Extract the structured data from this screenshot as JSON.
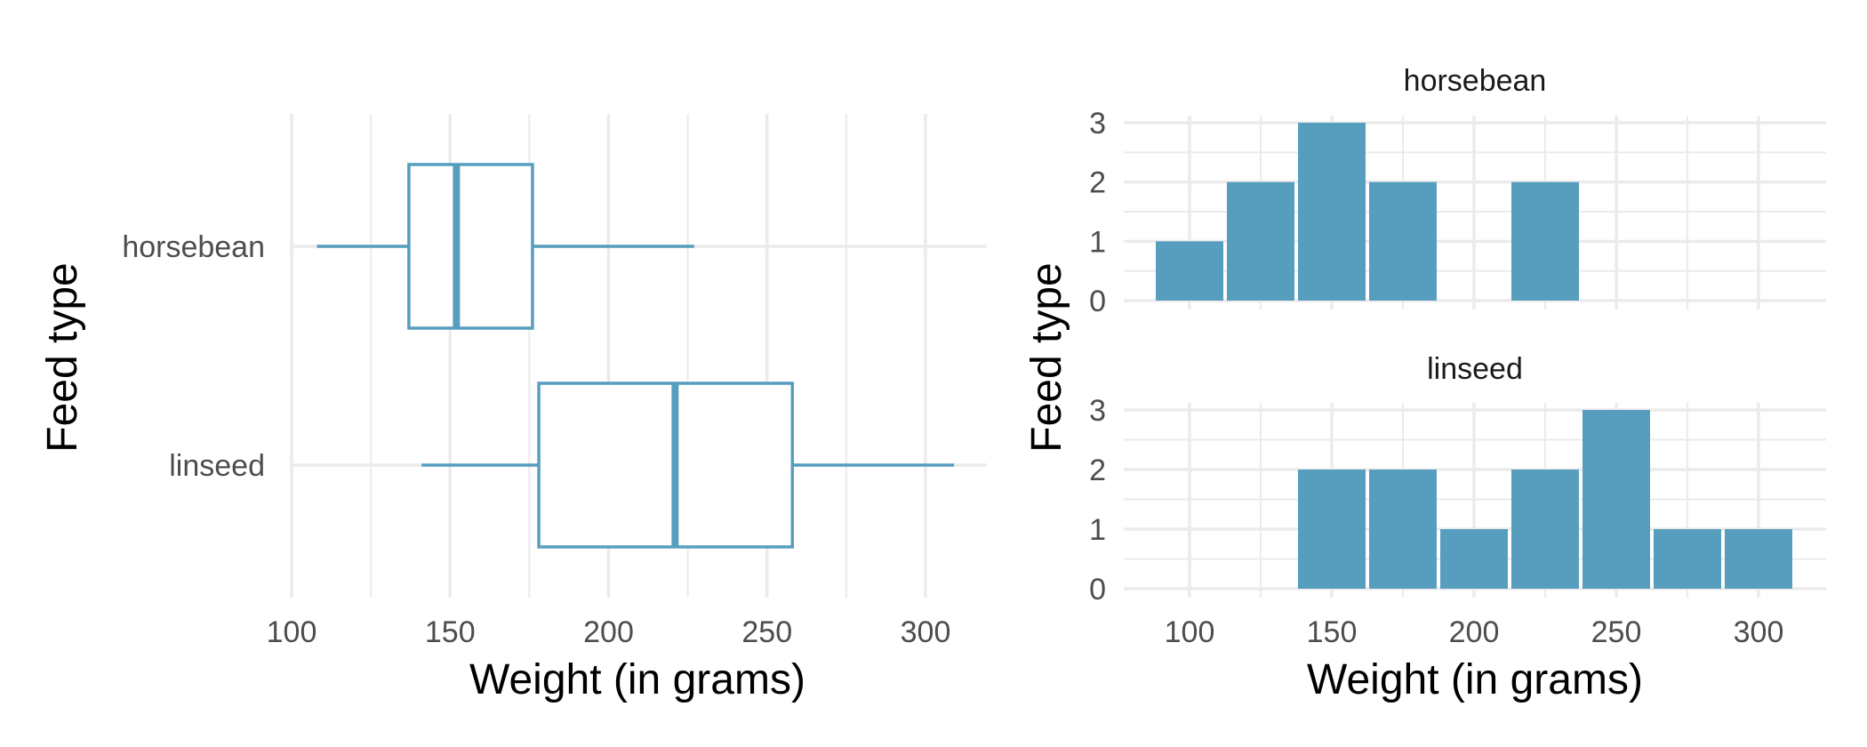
{
  "accent_color": "#579EBE",
  "chart_data": [
    {
      "type": "boxplot",
      "orientation": "horizontal",
      "categories": [
        "horsebean",
        "linseed"
      ],
      "boxes": [
        {
          "name": "horsebean",
          "min": 108,
          "q1": 137,
          "median": 152,
          "q3": 176,
          "max": 227
        },
        {
          "name": "linseed",
          "min": 141,
          "q1": 178,
          "median": 221,
          "q3": 258,
          "max": 309
        }
      ],
      "xlabel": "Weight (in grams)",
      "ylabel": "Feed type",
      "xlim": [
        100,
        320
      ],
      "xticks": [
        "100",
        "150",
        "200",
        "250",
        "300"
      ],
      "grid": true
    },
    {
      "type": "bar",
      "subtype": "histogram",
      "bin_width": 25,
      "bin_centers": [
        100,
        125,
        150,
        175,
        200,
        225,
        250,
        275,
        300
      ],
      "facets": [
        {
          "title": "horsebean",
          "counts": [
            1,
            2,
            3,
            2,
            0,
            2,
            0,
            0,
            0
          ]
        },
        {
          "title": "linseed",
          "counts": [
            0,
            0,
            2,
            2,
            1,
            2,
            3,
            1,
            1
          ]
        }
      ],
      "xlabel": "Weight (in grams)",
      "ylabel": "Feed type",
      "xlim": [
        87.5,
        312.5
      ],
      "ylim": [
        0,
        3
      ],
      "xticks": [
        "100",
        "150",
        "200",
        "250",
        "300"
      ],
      "yticks": [
        "0",
        "1",
        "2",
        "3"
      ],
      "grid": true
    }
  ]
}
